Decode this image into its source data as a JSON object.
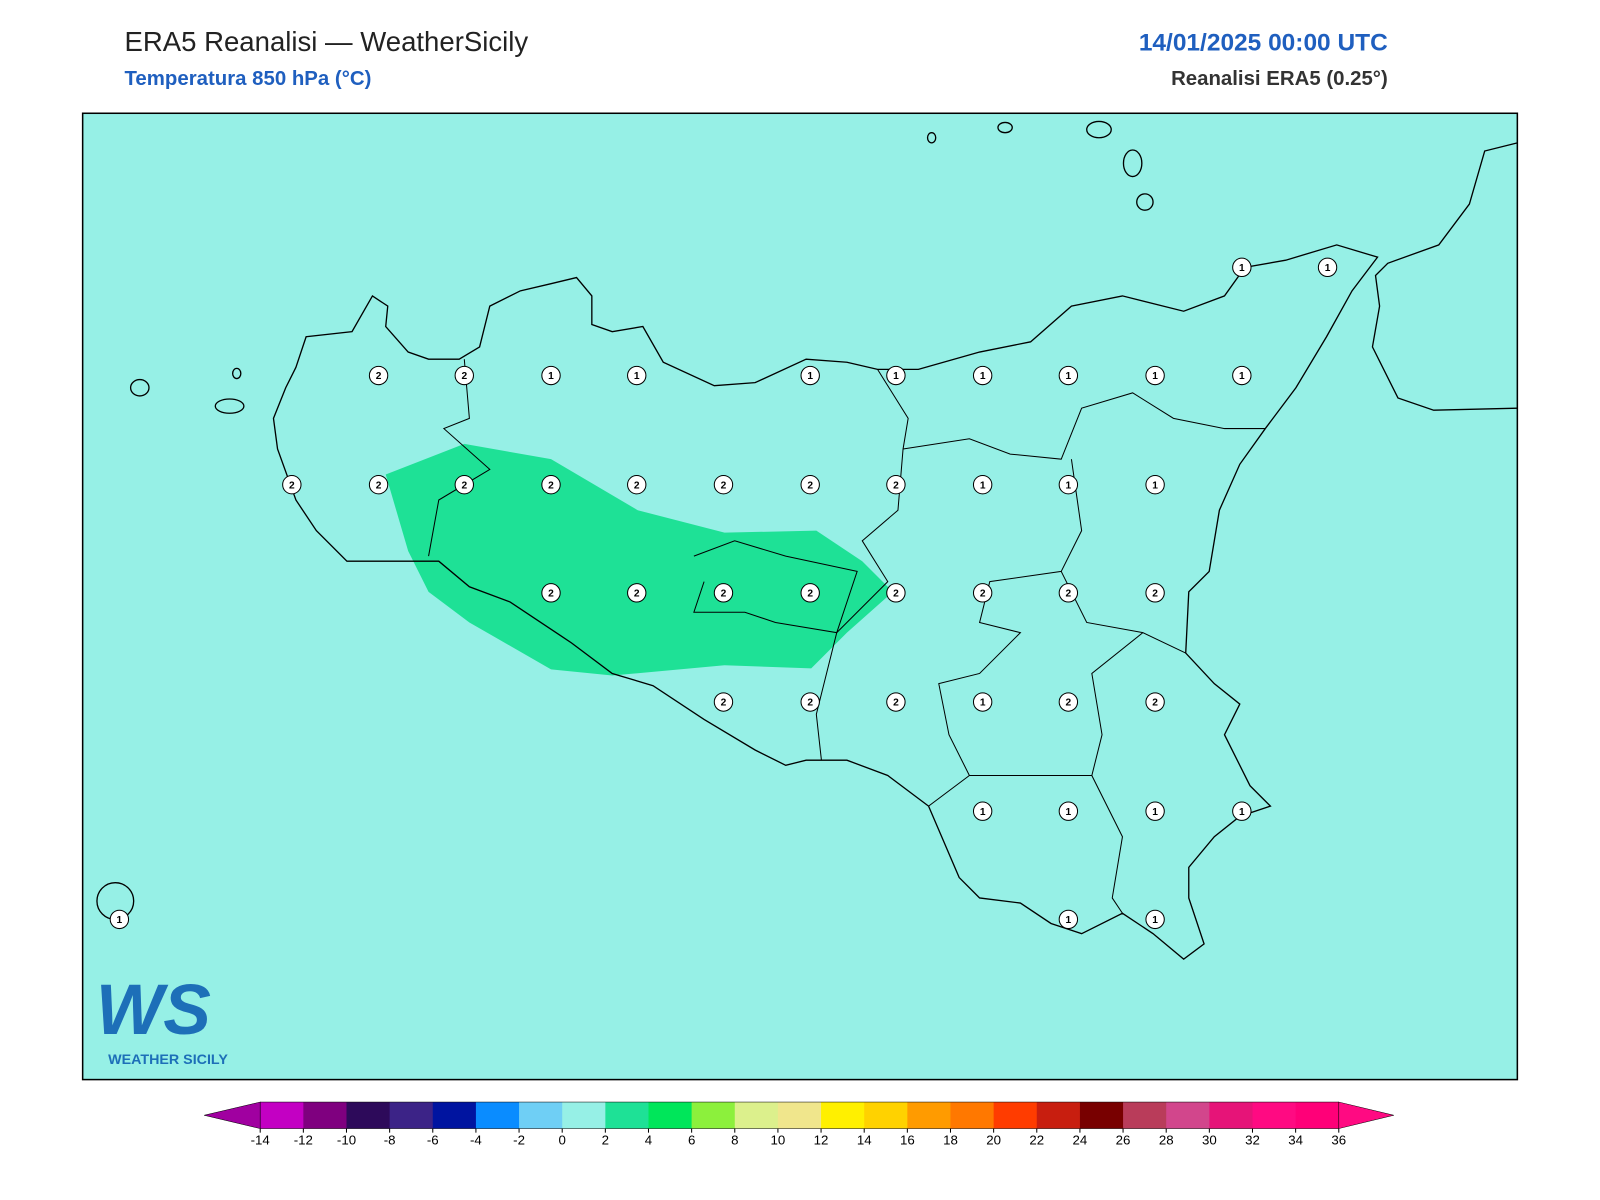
{
  "header": {
    "title": "ERA5 Reanalisi — WeatherSicily",
    "subtitle": "Temperatura 850 hPa (°C)",
    "date": "14/01/2025 00:00 UTC",
    "source": "Reanalisi ERA5 (0.25°)"
  },
  "map": {
    "background": "#96f0e6",
    "points": [
      1,
      1,
      2,
      2,
      1,
      1,
      1,
      1,
      1,
      1,
      1,
      1,
      2,
      2,
      2,
      2,
      2,
      2,
      2,
      2,
      1,
      1,
      1,
      2,
      2,
      2,
      2,
      2,
      2,
      2,
      2,
      2,
      2,
      2,
      1,
      2,
      2,
      1,
      1,
      1,
      1,
      1,
      1,
      1
    ]
  },
  "logo": {
    "letters": "WS",
    "text": "WEATHER SICILY"
  },
  "colorbar": {
    "under": "#a000a0",
    "over": "#ff0a82",
    "colors": [
      "#c300c3",
      "#7f007f",
      "#2d0a5a",
      "#3c2387",
      "#0014a0",
      "#0a8cff",
      "#6fcff5",
      "#96f0e6",
      "#1ee196",
      "#00e65a",
      "#8cf03c",
      "#dcf08c",
      "#f0e68c",
      "#fff000",
      "#ffd200",
      "#ff9b00",
      "#ff7800",
      "#ff3c00",
      "#c81e0f",
      "#780000",
      "#b93c5a",
      "#d2468c",
      "#e61478",
      "#ff0a82",
      "#ff0078"
    ],
    "ticks": [
      -14,
      -12,
      -10,
      -8,
      -6,
      -4,
      -2,
      0,
      2,
      4,
      6,
      8,
      10,
      12,
      14,
      16,
      18,
      20,
      22,
      24,
      26,
      28,
      30,
      32,
      34,
      36
    ]
  }
}
